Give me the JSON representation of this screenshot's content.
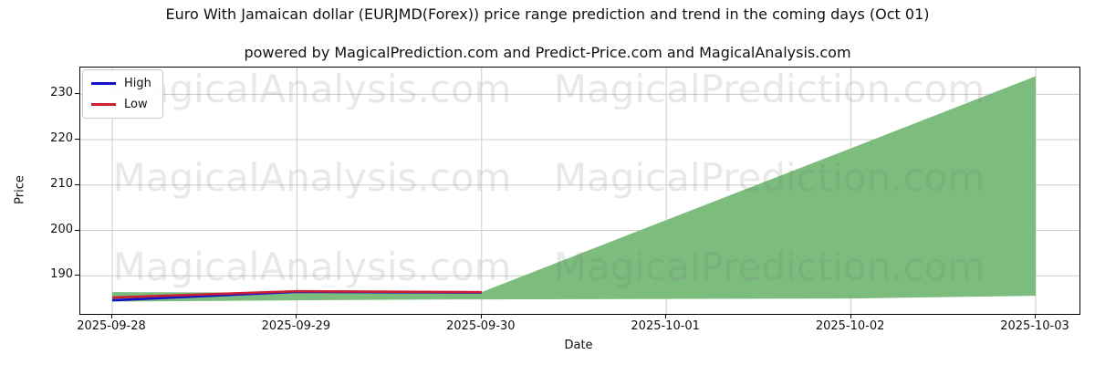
{
  "watermarks": {
    "color": "rgba(110,110,110,0.16)",
    "rows": [
      {
        "left": "MagicalAnalysis.com",
        "right": "MagicalPrediction.com"
      },
      {
        "left": "MagicalAnalysis.com",
        "right": "MagicalPrediction.com"
      },
      {
        "left": "MagicalAnalysis.com",
        "right": "MagicalPrediction.com"
      }
    ]
  },
  "chart_data": {
    "type": "area",
    "title": "Euro With Jamaican dollar (EURJMD(Forex)) price range prediction and trend in the coming days (Oct 01)",
    "subtitle": "powered by MagicalPrediction.com and Predict-Price.com and MagicalAnalysis.com",
    "xlabel": "Date",
    "ylabel": "Price",
    "x_dates": [
      "2025-09-28",
      "2025-09-29",
      "2025-09-30",
      "2025-10-01",
      "2025-10-02",
      "2025-10-03"
    ],
    "yticks": [
      190,
      200,
      210,
      220,
      230
    ],
    "ylim": [
      181.6,
      235.9
    ],
    "grid": true,
    "legend_position": "upper left",
    "series": [
      {
        "name": "High",
        "color": "#1212cc",
        "x": [
          "2025-09-28",
          "2025-09-29",
          "2025-09-30"
        ],
        "values": [
          184.6,
          186.45,
          186.3
        ]
      },
      {
        "name": "Low",
        "color": "#cc1f33",
        "x": [
          "2025-09-28",
          "2025-09-29",
          "2025-09-30"
        ],
        "values": [
          185.2,
          186.6,
          186.4
        ]
      }
    ],
    "band": {
      "name": "prediction-range",
      "color": "#7cbd7e",
      "x": [
        "2025-09-28",
        "2025-09-29",
        "2025-09-30",
        "2025-10-01",
        "2025-10-02",
        "2025-10-03"
      ],
      "upper": [
        186.4,
        186.3,
        186.4,
        202.3,
        218.1,
        234.0
      ],
      "lower": [
        184.3,
        184.6,
        184.8,
        184.9,
        185.0,
        185.6
      ]
    }
  }
}
